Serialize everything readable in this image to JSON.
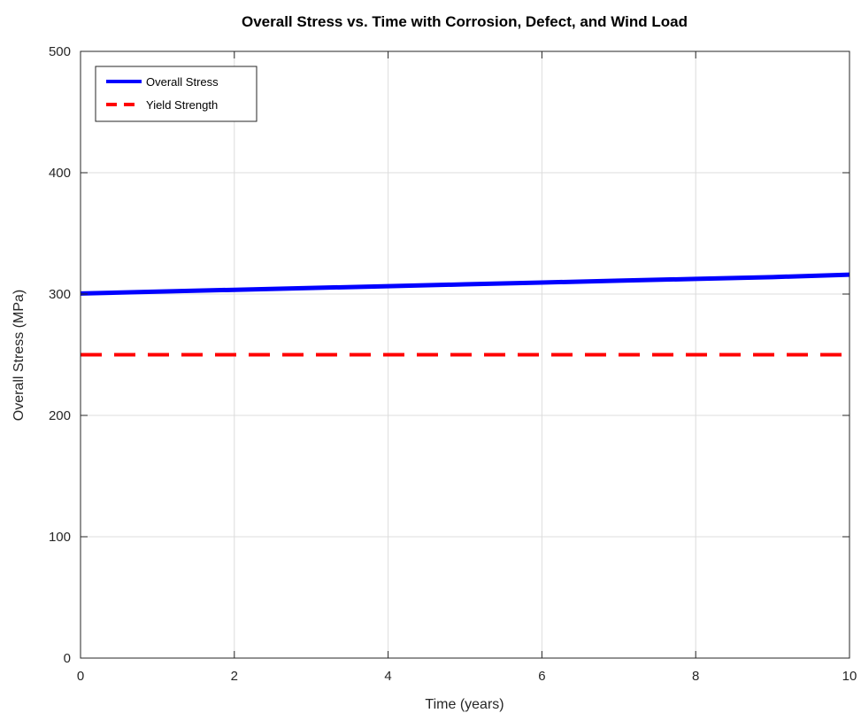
{
  "chart_data": {
    "type": "line",
    "title": "Overall Stress vs. Time with Corrosion, Defect, and Wind Load",
    "xlabel": "Time (years)",
    "ylabel": "Overall Stress (MPa)",
    "xlim": [
      0,
      10
    ],
    "ylim": [
      0,
      500
    ],
    "xticks": [
      0,
      2,
      4,
      6,
      8,
      10
    ],
    "yticks": [
      0,
      100,
      200,
      300,
      400,
      500
    ],
    "grid": true,
    "legend_position": "top-left",
    "series": [
      {
        "name": "Overall Stress",
        "color": "#0000ff",
        "style": "solid",
        "x": [
          0,
          1,
          2,
          3,
          4,
          5,
          6,
          7,
          8,
          9,
          10
        ],
        "y": [
          300.5,
          302,
          303.5,
          305,
          306.5,
          308,
          309.5,
          311,
          312.5,
          314,
          316
        ]
      },
      {
        "name": "Yield Strength",
        "color": "#ff0000",
        "style": "dashed",
        "x": [
          0,
          10
        ],
        "y": [
          250,
          250
        ]
      }
    ]
  }
}
